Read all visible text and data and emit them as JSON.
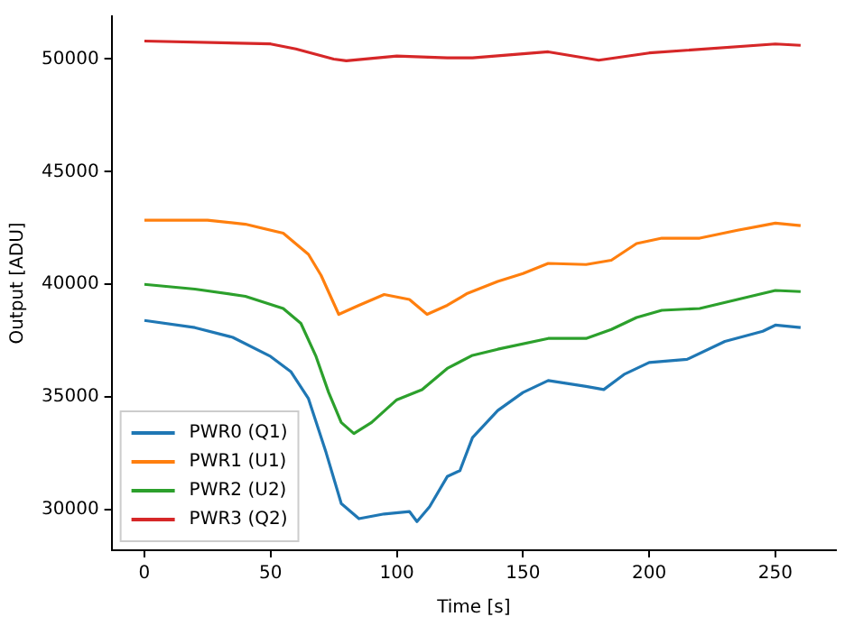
{
  "chart_data": {
    "type": "line",
    "xlabel": "Time [s]",
    "ylabel": "Output [ADU]",
    "xlim": [
      -13,
      274
    ],
    "ylim": [
      28200,
      51900
    ],
    "xticks": [
      0,
      50,
      100,
      150,
      200,
      250
    ],
    "yticks": [
      30000,
      35000,
      40000,
      45000,
      50000
    ],
    "grid": false,
    "legend": "bottom left",
    "marker": "none",
    "line_style": "solid",
    "series": [
      {
        "name": "PWR0 (Q1)",
        "color": "#1f77b4",
        "x": [
          0,
          20,
          35,
          50,
          58,
          65,
          72,
          78,
          85,
          95,
          105,
          108,
          113,
          120,
          125,
          130,
          140,
          150,
          160,
          175,
          182,
          190,
          200,
          215,
          230,
          245,
          250,
          260
        ],
        "values": [
          38400,
          38080,
          37650,
          36800,
          36130,
          34930,
          32530,
          30270,
          29600,
          29810,
          29920,
          29470,
          30130,
          31470,
          31730,
          33200,
          34400,
          35200,
          35730,
          35470,
          35330,
          36000,
          36530,
          36670,
          37470,
          37920,
          38190,
          38080
        ]
      },
      {
        "name": "PWR1 (U1)",
        "color": "#ff7f0e",
        "x": [
          0,
          25,
          40,
          55,
          65,
          70,
          77,
          85,
          95,
          105,
          112,
          120,
          128,
          140,
          150,
          160,
          175,
          185,
          195,
          205,
          220,
          235,
          250,
          260
        ],
        "values": [
          42850,
          42850,
          42670,
          42270,
          41330,
          40400,
          38670,
          39070,
          39550,
          39330,
          38670,
          39070,
          39600,
          40130,
          40480,
          40930,
          40880,
          41070,
          41810,
          42050,
          42050,
          42400,
          42720,
          42610
        ]
      },
      {
        "name": "PWR2 (U2)",
        "color": "#2ca02c",
        "x": [
          0,
          20,
          40,
          55,
          62,
          68,
          73,
          78,
          83,
          90,
          100,
          110,
          120,
          130,
          140,
          160,
          175,
          185,
          195,
          205,
          220,
          235,
          250,
          260
        ],
        "values": [
          40000,
          39790,
          39470,
          38930,
          38270,
          36800,
          35200,
          33870,
          33380,
          33870,
          34880,
          35330,
          36270,
          36850,
          37120,
          37600,
          37600,
          38000,
          38530,
          38850,
          38930,
          39330,
          39730,
          39680
        ]
      },
      {
        "name": "PWR3 (Q2)",
        "color": "#d62728",
        "x": [
          0,
          50,
          60,
          75,
          80,
          100,
          120,
          130,
          160,
          180,
          200,
          250,
          260
        ],
        "values": [
          50800,
          50670,
          50450,
          50000,
          49920,
          50130,
          50050,
          50050,
          50320,
          49950,
          50270,
          50670,
          50610
        ]
      }
    ]
  }
}
